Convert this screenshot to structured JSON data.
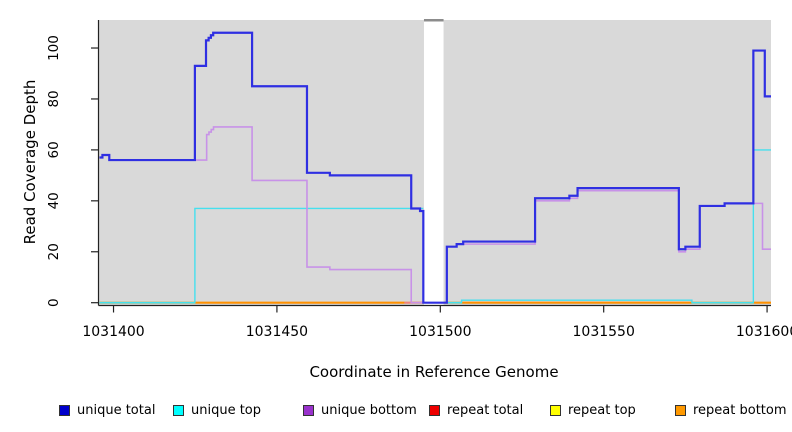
{
  "chart_data": {
    "type": "line",
    "step_mode": "after",
    "title": "",
    "xlabel": "Coordinate in Reference Genome",
    "ylabel": "Read Coverage Depth",
    "x_ticks": [
      1031400,
      1031450,
      1031500,
      1031550,
      1031600
    ],
    "y_ticks": [
      0,
      20,
      40,
      60,
      80,
      100
    ],
    "xlim": [
      1031395.4,
      1031601.2
    ],
    "ylim": [
      -0.9,
      111.0
    ],
    "plot_bg": "#d9d9d9",
    "grid": "off",
    "legend_position": "bottom",
    "no_data_region": {
      "x0": 1031495,
      "x1": 1031501,
      "color": "#ffffff",
      "cap_color": "#8c8c8c"
    },
    "series": [
      {
        "name": "unique total",
        "color": "#2f2fe2",
        "width": 2.2,
        "segments": [
          {
            "points": [
              [
                1031395.7,
                57
              ],
              [
                1031396.6,
                58
              ],
              [
                1031398.7,
                56
              ],
              [
                1031424.9,
                93
              ],
              [
                1031428.3,
                103
              ],
              [
                1031429.1,
                104
              ],
              [
                1031429.8,
                105
              ],
              [
                1031430.5,
                106
              ],
              [
                1031442.4,
                85
              ],
              [
                1031459.2,
                51
              ],
              [
                1031466.2,
                50
              ],
              [
                1031491.1,
                37
              ],
              [
                1031493.8,
                36
              ],
              [
                1031494.8,
                0
              ],
              [
                1031502,
                22
              ],
              [
                1031505,
                23
              ],
              [
                1031507,
                24
              ],
              [
                1031529,
                41
              ],
              [
                1031539.5,
                42
              ],
              [
                1031542,
                45
              ],
              [
                1031573,
                21
              ],
              [
                1031575,
                22
              ],
              [
                1031579.4,
                38
              ],
              [
                1031587,
                39
              ],
              [
                1031595.8,
                99
              ],
              [
                1031599.3,
                81
              ]
            ],
            "end": 1031601.2
          }
        ]
      },
      {
        "name": "unique top",
        "color": "#45e0ee",
        "width": 1.4,
        "segments": [
          {
            "points": [
              [
                1031395.7,
                0
              ],
              [
                1031424.9,
                37
              ]
            ],
            "end": 1031494.8
          },
          {
            "points": [
              [
                1031501,
                0
              ],
              [
                1031506.5,
                1
              ],
              [
                1031577,
                0
              ],
              [
                1031595.8,
                60
              ]
            ],
            "end": 1031601.2
          }
        ]
      },
      {
        "name": "unique bottom",
        "color": "#c892e8",
        "width": 1.6,
        "segments": [
          {
            "points": [
              [
                1031395.7,
                57
              ],
              [
                1031396.6,
                58
              ],
              [
                1031398.7,
                56
              ],
              [
                1031428.5,
                66
              ],
              [
                1031429.2,
                67
              ],
              [
                1031429.9,
                68
              ],
              [
                1031430.6,
                69
              ],
              [
                1031442.4,
                48
              ],
              [
                1031459.2,
                14
              ],
              [
                1031466.2,
                13
              ],
              [
                1031491.1,
                0
              ]
            ],
            "end": 1031494.8
          },
          {
            "points": [
              [
                1031501.9,
                0
              ],
              [
                1031502,
                22
              ],
              [
                1031505,
                23
              ],
              [
                1031529,
                40
              ],
              [
                1031539.5,
                41
              ],
              [
                1031542,
                44
              ],
              [
                1031573,
                20
              ],
              [
                1031575,
                21
              ],
              [
                1031579.4,
                38
              ],
              [
                1031587,
                39
              ],
              [
                1031598.6,
                21
              ]
            ],
            "end": 1031601.2
          }
        ]
      },
      {
        "name": "repeat total",
        "color": "#ee3333",
        "width": 1.2,
        "segments": [
          {
            "points": [
              [
                1031395.7,
                0
              ]
            ],
            "end": 1031494.8
          },
          {
            "points": [
              [
                1031501,
                0
              ]
            ],
            "end": 1031601.2
          }
        ]
      },
      {
        "name": "repeat top",
        "color": "#eded45",
        "width": 1.2,
        "segments": [
          {
            "points": [
              [
                1031395.7,
                0
              ]
            ],
            "end": 1031494.8
          },
          {
            "points": [
              [
                1031501,
                0
              ]
            ],
            "end": 1031601.2
          }
        ]
      },
      {
        "name": "repeat bottom",
        "color": "#ff9100",
        "width": 1.8,
        "segments": [
          {
            "points": [
              [
                1031395.7,
                0
              ]
            ],
            "end": 1031494.8
          },
          {
            "points": [
              [
                1031501,
                0
              ]
            ],
            "end": 1031601.2
          }
        ]
      }
    ],
    "baseline_rendered_segments": [
      {
        "x0": 1031395.7,
        "x1": 1031424.9,
        "color": "#8fca8f"
      },
      {
        "x0": 1031424.9,
        "x1": 1031489.0,
        "color": "#ff9100"
      },
      {
        "x0": 1031489.0,
        "x1": 1031494.8,
        "color": "#f08080"
      },
      {
        "x0": 1031501.0,
        "x1": 1031506.5,
        "color": "#8fca8f"
      },
      {
        "x0": 1031506.5,
        "x1": 1031577.0,
        "color": "#ff9100"
      },
      {
        "x0": 1031577.0,
        "x1": 1031595.8,
        "color": "#8fca8f"
      },
      {
        "x0": 1031595.8,
        "x1": 1031601.2,
        "color": "#ff9100"
      }
    ],
    "legend": [
      {
        "label": "unique total",
        "color": "#0000cc"
      },
      {
        "label": "unique top",
        "color": "#00ffff"
      },
      {
        "label": "unique bottom",
        "color": "#9932cc"
      },
      {
        "label": "repeat total",
        "color": "#ee0000"
      },
      {
        "label": "repeat top",
        "color": "#ffff00"
      },
      {
        "label": "repeat bottom",
        "color": "#ff9900"
      }
    ]
  }
}
